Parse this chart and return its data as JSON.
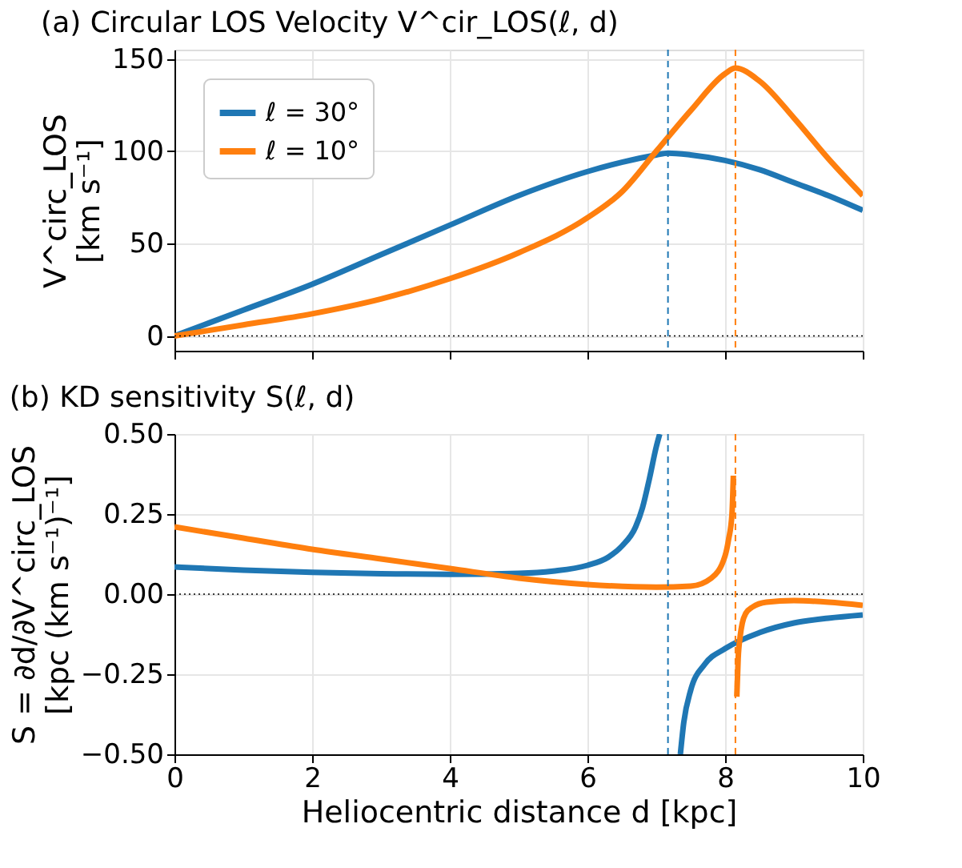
{
  "chart_data": [
    {
      "type": "line",
      "title": "(a) Circular LOS Velocity V^cir_LOS(ℓ, d)",
      "ylabel": "V^circ_LOS\n[km s⁻¹]",
      "xlim": [
        0,
        10
      ],
      "xticks": [
        0,
        2,
        4,
        6,
        8,
        10
      ],
      "ylim": [
        -8,
        155
      ],
      "yticks": [
        0,
        50,
        100,
        150
      ],
      "tick_labels": "y",
      "grid": true,
      "legend": "top left",
      "line_style": "solid",
      "series": [
        {
          "name": "ℓ = 30°",
          "color": "#1f77b4",
          "x": [
            0,
            1,
            2,
            3,
            4,
            5,
            6,
            6.5,
            7,
            7.17,
            7.5,
            8,
            8.5,
            9,
            9.5,
            10
          ],
          "values": [
            0,
            14,
            28,
            44,
            60,
            76,
            89,
            94,
            98,
            99,
            98,
            95,
            90,
            83,
            76,
            68
          ]
        },
        {
          "name": "ℓ = 10°",
          "color": "#ff7f0e",
          "x": [
            0,
            1,
            2,
            3,
            4,
            5,
            6,
            6.5,
            7,
            7.5,
            8,
            8.15,
            8.5,
            9,
            9.5,
            10
          ],
          "values": [
            0,
            6,
            12,
            20,
            31,
            45,
            64,
            78,
            100,
            122,
            142,
            145,
            138,
            118,
            96,
            76
          ]
        }
      ],
      "ref_lines": [
        {
          "axis": "x",
          "value": 7.17,
          "color": "#1f77b4",
          "line_style": "dashed"
        },
        {
          "axis": "x",
          "value": 8.15,
          "color": "#ff7f0e",
          "line_style": "dashed"
        },
        {
          "axis": "y",
          "value": 0,
          "color": "#000000",
          "line_style": "dotted"
        }
      ]
    },
    {
      "type": "line",
      "title": "(b) KD sensitivity S(ℓ, d)",
      "ylabel": "S = ∂d/∂V^circ_LOS\n[kpc (km s⁻¹)⁻¹]",
      "xlabel": "Heliocentric distance d [kpc]",
      "xlim": [
        0,
        10
      ],
      "xticks": [
        0,
        2,
        4,
        6,
        8,
        10
      ],
      "ylim": [
        -0.5,
        0.5
      ],
      "yticks": [
        {
          "value": -0.5,
          "label": "−0.50"
        },
        {
          "value": -0.25,
          "label": "−0.25"
        },
        {
          "value": 0,
          "label": "0.00"
        },
        {
          "value": 0.25,
          "label": "0.25"
        },
        {
          "value": 0.5,
          "label": "0.50"
        }
      ],
      "grid": true,
      "line_style": "solid",
      "series": [
        {
          "color": "#1f77b4",
          "x": [
            0,
            1,
            2,
            3,
            4,
            5,
            5.5,
            6,
            6.3,
            6.5,
            6.7,
            6.8,
            6.9,
            7.0,
            7.05,
            7.2,
            7.35,
            7.4,
            7.5,
            7.7,
            8,
            8.5,
            9,
            9.5,
            10
          ],
          "values": [
            0.085,
            0.075,
            0.068,
            0.064,
            0.062,
            0.065,
            0.072,
            0.09,
            0.115,
            0.15,
            0.21,
            0.27,
            0.36,
            0.46,
            0.5,
            null,
            -0.5,
            -0.4,
            -0.3,
            -0.22,
            -0.17,
            -0.12,
            -0.09,
            -0.075,
            -0.065
          ]
        },
        {
          "color": "#ff7f0e",
          "x": [
            0,
            1,
            2,
            3,
            4,
            5,
            6,
            7,
            7.5,
            7.8,
            8.0,
            8.05,
            8.1,
            8.12,
            8.15,
            8.17,
            8.19,
            8.22,
            8.25,
            8.3,
            8.4,
            8.6,
            9,
            9.5,
            10
          ],
          "values": [
            0.21,
            0.175,
            0.14,
            0.11,
            0.08,
            0.05,
            0.03,
            0.022,
            0.025,
            0.05,
            0.12,
            0.17,
            0.25,
            0.37,
            null,
            -0.32,
            -0.2,
            -0.13,
            -0.09,
            -0.06,
            -0.04,
            -0.025,
            -0.02,
            -0.025,
            -0.035
          ]
        }
      ],
      "ref_lines": [
        {
          "axis": "x",
          "value": 7.17,
          "color": "#1f77b4",
          "line_style": "dashed"
        },
        {
          "axis": "x",
          "value": 8.15,
          "color": "#ff7f0e",
          "line_style": "dashed"
        },
        {
          "axis": "y",
          "value": 0,
          "color": "#000000",
          "line_style": "dotted"
        }
      ]
    }
  ]
}
